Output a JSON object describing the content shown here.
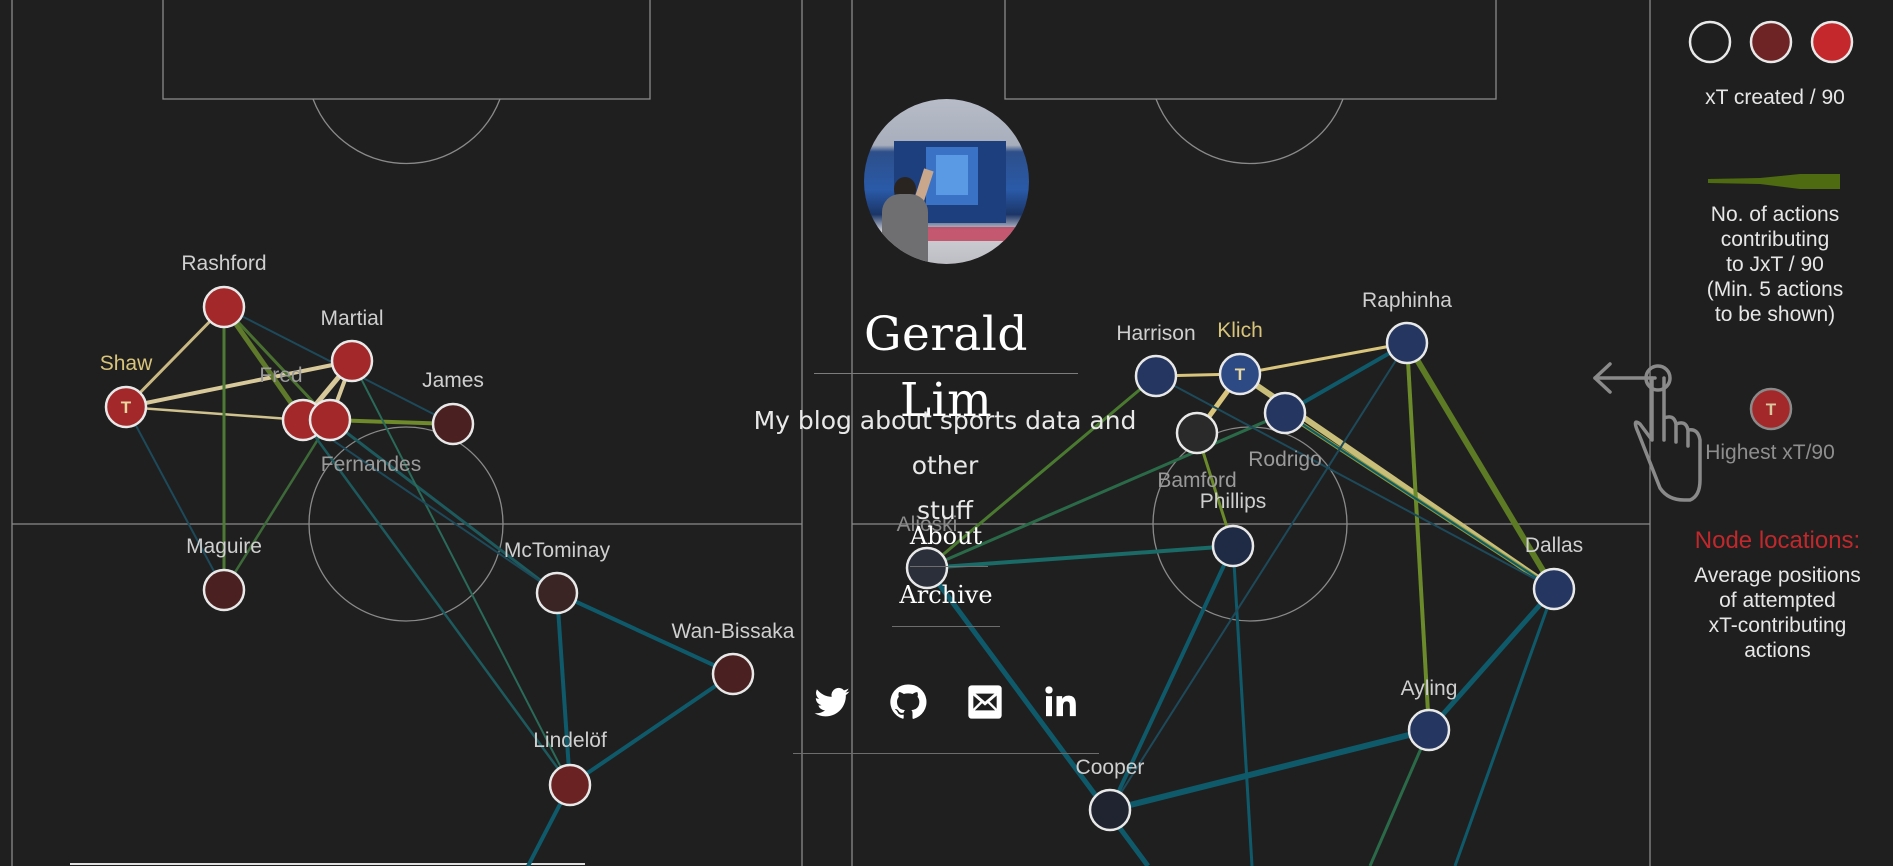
{
  "profile": {
    "name": "Gerald Lim",
    "tagline_line1": "My blog about sports data and other",
    "tagline_line2": "stuff",
    "avatar_alt": "Profile photo"
  },
  "nav": {
    "about": "About",
    "archive": "Archive"
  },
  "social": {
    "items": [
      {
        "name": "twitter-icon",
        "label": "Twitter"
      },
      {
        "name": "github-icon",
        "label": "GitHub"
      },
      {
        "name": "email-icon",
        "label": "Email"
      },
      {
        "name": "linkedin-icon",
        "label": "LinkedIn"
      }
    ]
  },
  "legend": {
    "xt_label": "xT created / 90",
    "actions_line1": "No. of actions",
    "actions_line2": "contributing",
    "actions_line3": "to JxT / 90",
    "actions_line4": "(Min. 5 actions",
    "actions_line5": "to be shown)",
    "highest_marker": "T",
    "highest_label": "Highest xT/90",
    "node_title": "Node locations:",
    "node_line1": "Average positions",
    "node_line2": "of attempted",
    "node_line3": "xT-contributing",
    "node_line4": "actions"
  },
  "colors": {
    "background": "#1f1f1f",
    "pitch_lines": "#8a8a8a",
    "team_left_high": "#a3282a",
    "team_left_low": "#4a2020",
    "team_right": "#253660",
    "edge_yellow": "#d9c98a",
    "edge_teal": "#0f5a6a",
    "edge_green": "#6b8a2a",
    "highlight_name": "#d8c47a",
    "legend_red": "#c0282c"
  },
  "network_left": {
    "players": [
      {
        "name": "Rashford",
        "highlight": false,
        "xt_level": "high"
      },
      {
        "name": "Martial",
        "highlight": false,
        "xt_level": "high"
      },
      {
        "name": "Shaw",
        "highlight": true,
        "xt_level": "high",
        "marker": "T"
      },
      {
        "name": "Fred",
        "highlight": false,
        "xt_level": "high"
      },
      {
        "name": "Fernandes",
        "highlight": false,
        "xt_level": "high"
      },
      {
        "name": "James",
        "highlight": false,
        "xt_level": "low"
      },
      {
        "name": "Maguire",
        "highlight": false,
        "xt_level": "low"
      },
      {
        "name": "McTominay",
        "highlight": false,
        "xt_level": "low"
      },
      {
        "name": "Wan-Bissaka",
        "highlight": false,
        "xt_level": "low"
      },
      {
        "name": "Lindelöf",
        "highlight": false,
        "xt_level": "mid"
      }
    ]
  },
  "network_right": {
    "players": [
      {
        "name": "Harrison",
        "highlight": false
      },
      {
        "name": "Klich",
        "highlight": true,
        "marker": "T"
      },
      {
        "name": "Raphinha",
        "highlight": false
      },
      {
        "name": "Rodrigo",
        "highlight": false
      },
      {
        "name": "Bamford",
        "highlight": false
      },
      {
        "name": "Phillips",
        "highlight": false
      },
      {
        "name": "Alioski",
        "highlight": false
      },
      {
        "name": "Dallas",
        "highlight": false
      },
      {
        "name": "Ayling",
        "highlight": false
      },
      {
        "name": "Cooper",
        "highlight": false
      }
    ]
  }
}
